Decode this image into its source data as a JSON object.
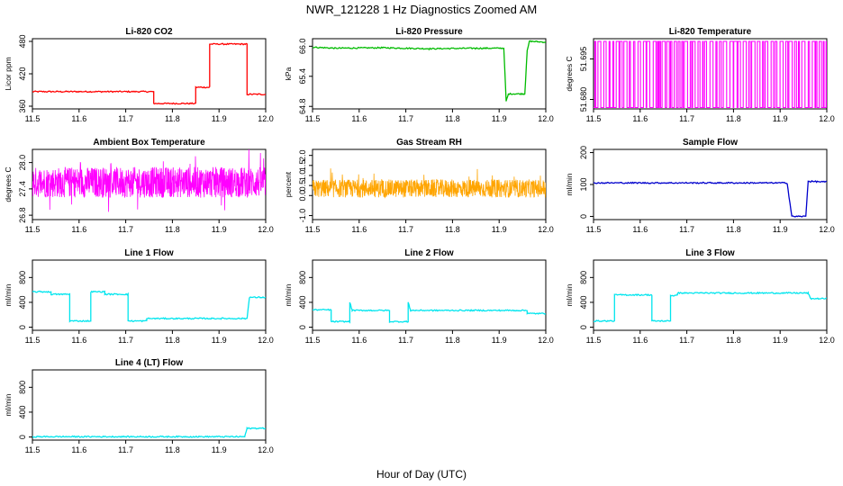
{
  "title": "NWR_121228  1 Hz Diagnostics Zoomed AM",
  "xlabel": "Hour of Day (UTC)",
  "chart_data": [
    {
      "type": "line",
      "title": "Li-820 CO2",
      "ylabel": "Licor ppm",
      "color": "#ff0000",
      "xlim": [
        11.5,
        12.0
      ],
      "ylim": [
        355,
        485
      ],
      "xticks": [
        "11.5",
        "11.6",
        "11.7",
        "11.8",
        "11.9",
        "12.0"
      ],
      "yticks": [
        "360",
        "420",
        "480"
      ],
      "series": [
        {
          "x": [
            11.5,
            11.76,
            11.76,
            11.85,
            11.85,
            11.88,
            11.88,
            11.96,
            11.96,
            12.0
          ],
          "y": [
            387,
            387,
            365,
            365,
            395,
            395,
            475,
            475,
            382,
            382
          ]
        }
      ]
    },
    {
      "type": "line",
      "title": "Li-820 Pressure",
      "ylabel": "kPa",
      "color": "#00bb00",
      "xlim": [
        11.5,
        12.0
      ],
      "ylim": [
        64.75,
        66.15
      ],
      "xticks": [
        "11.5",
        "11.6",
        "11.7",
        "11.8",
        "11.9",
        "12.0"
      ],
      "yticks": [
        "64.8",
        "65.4",
        "66.0"
      ],
      "series": [
        {
          "x": [
            11.5,
            11.55,
            11.65,
            11.75,
            11.85,
            11.91,
            11.915,
            11.92,
            11.955,
            11.96,
            11.965,
            12.0
          ],
          "y": [
            65.98,
            65.96,
            65.97,
            65.95,
            65.96,
            65.96,
            64.9,
            65.05,
            65.05,
            65.9,
            66.1,
            66.08
          ]
        }
      ]
    },
    {
      "type": "line",
      "title": "Li-820 Temperature",
      "ylabel": "degrees C",
      "color": "#ff00ff",
      "xlim": [
        11.5,
        12.0
      ],
      "ylim": [
        51.6765,
        51.7025
      ],
      "xticks": [
        "11.5",
        "11.6",
        "11.7",
        "11.8",
        "11.9",
        "12.0"
      ],
      "yticks": [
        "51.680",
        "51.695"
      ],
      "series": [
        {
          "low": 51.677,
          "high": 51.7015,
          "noise": "dense-toggle"
        }
      ]
    },
    {
      "type": "line",
      "title": "Ambient Box Temperature",
      "ylabel": "degrees C",
      "color": "#ff00ff",
      "xlim": [
        11.5,
        12.0
      ],
      "ylim": [
        26.7,
        28.3
      ],
      "xticks": [
        "11.5",
        "11.6",
        "11.7",
        "11.8",
        "11.9",
        "12.0"
      ],
      "yticks": [
        "26.8",
        "27.4",
        "28.0"
      ],
      "series": [
        {
          "mean": 27.55,
          "amplitude": 0.35,
          "noise": "dense"
        }
      ]
    },
    {
      "type": "line",
      "title": "Gas Stream RH",
      "ylabel": "percent",
      "color": "#ffa500",
      "xlim": [
        11.5,
        12.0
      ],
      "ylim": [
        -1.2,
        2.3
      ],
      "xticks": [
        "11.5",
        "11.6",
        "11.7",
        "11.8",
        "11.9",
        "12.0"
      ],
      "yticks": [
        "-1.0",
        "0.0",
        "0.5",
        "1.0",
        "1.5",
        "2.0"
      ],
      "series": [
        {
          "mean": 0.35,
          "amplitude": 0.45,
          "noise": "dense"
        }
      ]
    },
    {
      "type": "line",
      "title": "Sample Flow",
      "ylabel": "ml/min",
      "color": "#0000cc",
      "xlim": [
        11.5,
        12.0
      ],
      "ylim": [
        -10,
        210
      ],
      "xticks": [
        "11.5",
        "11.6",
        "11.7",
        "11.8",
        "11.9",
        "12.0"
      ],
      "yticks": [
        "0",
        "100",
        "200"
      ],
      "series": [
        {
          "x": [
            11.5,
            11.915,
            11.925,
            11.955,
            11.96,
            12.0
          ],
          "y": [
            105,
            105,
            0,
            0,
            110,
            108
          ]
        }
      ]
    },
    {
      "type": "line",
      "title": "Line 1 Flow",
      "ylabel": "ml/min",
      "color": "#00e5ee",
      "xlim": [
        11.5,
        12.0
      ],
      "ylim": [
        -50,
        1080
      ],
      "xticks": [
        "11.5",
        "11.6",
        "11.7",
        "11.8",
        "11.9",
        "12.0"
      ],
      "yticks": [
        "0",
        "400",
        "800"
      ],
      "series": [
        {
          "x": [
            11.5,
            11.54,
            11.54,
            11.58,
            11.58,
            11.625,
            11.625,
            11.655,
            11.655,
            11.705,
            11.705,
            11.745,
            11.745,
            11.96,
            11.965,
            12.0
          ],
          "y": [
            570,
            570,
            530,
            530,
            100,
            100,
            570,
            570,
            530,
            530,
            100,
            100,
            140,
            140,
            480,
            480
          ]
        }
      ]
    },
    {
      "type": "line",
      "title": "Line 2 Flow",
      "ylabel": "ml/min",
      "color": "#00e5ee",
      "xlim": [
        11.5,
        12.0
      ],
      "ylim": [
        -50,
        1080
      ],
      "xticks": [
        "11.5",
        "11.6",
        "11.7",
        "11.8",
        "11.9",
        "12.0"
      ],
      "yticks": [
        "0",
        "400",
        "800"
      ],
      "series": [
        {
          "x": [
            11.5,
            11.54,
            11.54,
            11.58,
            11.58,
            11.585,
            11.585,
            11.665,
            11.665,
            11.705,
            11.705,
            11.71,
            11.71,
            11.96,
            11.96,
            12.0
          ],
          "y": [
            280,
            280,
            90,
            90,
            400,
            270,
            270,
            270,
            90,
            90,
            400,
            270,
            270,
            270,
            220,
            220
          ]
        }
      ]
    },
    {
      "type": "line",
      "title": "Line 3 Flow",
      "ylabel": "ml/min",
      "color": "#00e5ee",
      "xlim": [
        11.5,
        12.0
      ],
      "ylim": [
        -50,
        1080
      ],
      "xticks": [
        "11.5",
        "11.6",
        "11.7",
        "11.8",
        "11.9",
        "12.0"
      ],
      "yticks": [
        "0",
        "400",
        "800"
      ],
      "series": [
        {
          "x": [
            11.5,
            11.545,
            11.545,
            11.625,
            11.625,
            11.665,
            11.665,
            11.68,
            11.68,
            11.96,
            11.965,
            12.0
          ],
          "y": [
            100,
            100,
            520,
            520,
            100,
            100,
            510,
            510,
            550,
            550,
            460,
            460
          ]
        }
      ]
    },
    {
      "type": "line",
      "title": "Line 4 (LT) Flow",
      "ylabel": "ml/min",
      "color": "#00e5ee",
      "xlim": [
        11.5,
        12.0
      ],
      "ylim": [
        -50,
        1080
      ],
      "xticks": [
        "11.5",
        "11.6",
        "11.7",
        "11.8",
        "11.9",
        "12.0"
      ],
      "yticks": [
        "0",
        "400",
        "800"
      ],
      "series": [
        {
          "x": [
            11.5,
            11.955,
            11.96,
            12.0
          ],
          "y": [
            5,
            5,
            140,
            140
          ]
        }
      ]
    }
  ]
}
